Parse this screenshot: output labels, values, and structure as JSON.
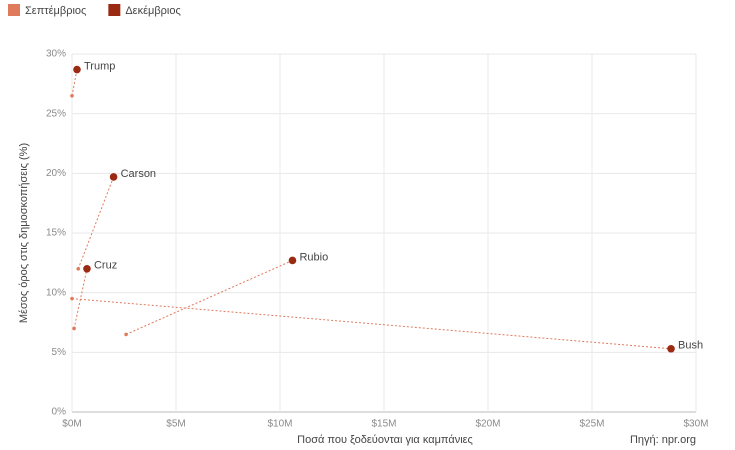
{
  "chart_data": {
    "type": "scatter",
    "x_label": "Ποσά που ξοδεύονται για καμπάνιες",
    "y_label": "Μέσος όρος στις δημοσκοπήσεις (%)",
    "source": "Πηγή: npr.org",
    "xlim": [
      0,
      30
    ],
    "xticks": [
      {
        "value": 0,
        "label": "$0M"
      },
      {
        "value": 5,
        "label": "$5M"
      },
      {
        "value": 10,
        "label": "$10M"
      },
      {
        "value": 15,
        "label": "$15M"
      },
      {
        "value": 20,
        "label": "$20M"
      },
      {
        "value": 25,
        "label": "$25M"
      },
      {
        "value": 30,
        "label": "$30M"
      }
    ],
    "ylim": [
      0,
      30
    ],
    "yticks": [
      {
        "value": 0,
        "label": "0%"
      },
      {
        "value": 5,
        "label": "5%"
      },
      {
        "value": 10,
        "label": "10%"
      },
      {
        "value": 15,
        "label": "15%"
      },
      {
        "value": 20,
        "label": "20%"
      },
      {
        "value": 25,
        "label": "25%"
      },
      {
        "value": 30,
        "label": "30%"
      }
    ],
    "grid": true,
    "legend": "top-left",
    "series": [
      {
        "name": "Σεπτέμβριος",
        "color": "#e07a5c",
        "x": [
          0,
          0.3,
          0.1,
          2.6,
          0
        ],
        "values": [
          26.5,
          12.0,
          7.0,
          6.5,
          9.5
        ]
      },
      {
        "name": "Δεκέμβριος",
        "color": "#9b2a12",
        "labels": [
          "Trump",
          "Carson",
          "Cruz",
          "Rubio",
          "Bush"
        ],
        "x": [
          0.24,
          2.0,
          0.72,
          10.6,
          28.8
        ],
        "values": [
          28.7,
          19.7,
          12.0,
          12.7,
          5.3
        ]
      }
    ]
  }
}
